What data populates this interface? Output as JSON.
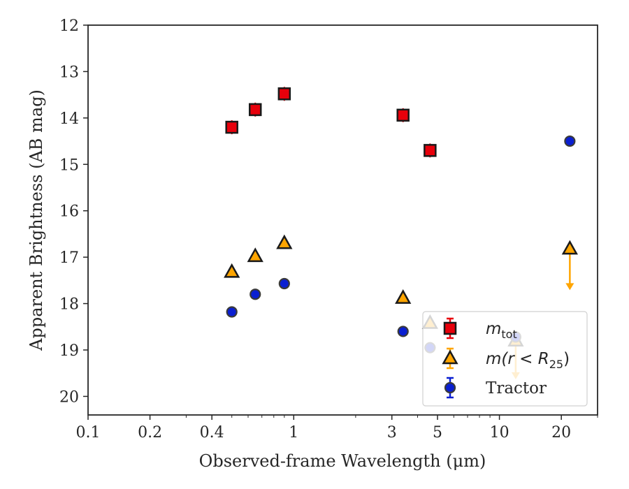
{
  "chart_data": {
    "type": "scatter",
    "title": "",
    "xlabel": "Observed-frame Wavelength (μm)",
    "ylabel": "Apparent Brightness (AB mag)",
    "xscale": "log",
    "xlim": [
      0.1,
      30
    ],
    "ylim": [
      20.4,
      12
    ],
    "y_inverted": true,
    "x_ticks": [
      0.1,
      0.2,
      0.4,
      1,
      3,
      5,
      10,
      20
    ],
    "x_tick_labels": [
      "0.1",
      "0.2",
      "0.4",
      "1",
      "3",
      "5",
      "10",
      "20"
    ],
    "y_ticks": [
      12,
      13,
      14,
      15,
      16,
      17,
      18,
      19,
      20
    ],
    "y_tick_labels": [
      "12",
      "13",
      "14",
      "15",
      "16",
      "17",
      "18",
      "19",
      "20"
    ],
    "grid": false,
    "legend_position": "lower-right",
    "series": [
      {
        "name": "m_tot",
        "legend_base": "m",
        "legend_sub": "tot",
        "marker": "square",
        "color": "#e8000b",
        "edge_color": "#1a1a1a",
        "x": [
          0.5,
          0.65,
          0.9,
          3.4,
          4.6
        ],
        "y": [
          14.2,
          13.82,
          13.48,
          13.94,
          14.7
        ]
      },
      {
        "name": "m(r < R_25)",
        "legend_base": "m(r < R",
        "legend_sub": "25",
        "legend_close": ")",
        "marker": "triangle",
        "color": "#ffa500",
        "edge_color": "#1a1a1a",
        "x": [
          0.5,
          0.65,
          0.9,
          3.4,
          4.6,
          12,
          22
        ],
        "y": [
          17.32,
          16.98,
          16.7,
          17.88,
          18.42,
          18.8,
          16.82
        ],
        "upper_limits": [
          false,
          false,
          false,
          false,
          false,
          true,
          true
        ],
        "limit_to": [
          null,
          null,
          null,
          null,
          null,
          19.6,
          17.68
        ]
      },
      {
        "name": "Tractor",
        "legend_base": "Tractor",
        "marker": "circle",
        "color": "#0a1fd1",
        "edge_color": "#3a3a3a",
        "x": [
          0.5,
          0.65,
          0.9,
          3.4,
          4.6,
          12,
          22
        ],
        "y": [
          18.18,
          17.8,
          17.57,
          18.6,
          18.95,
          18.72,
          14.5
        ],
        "yerr": [
          0.1,
          0.08,
          0.08,
          0.1,
          0.08,
          0.1,
          0.1
        ]
      }
    ]
  }
}
